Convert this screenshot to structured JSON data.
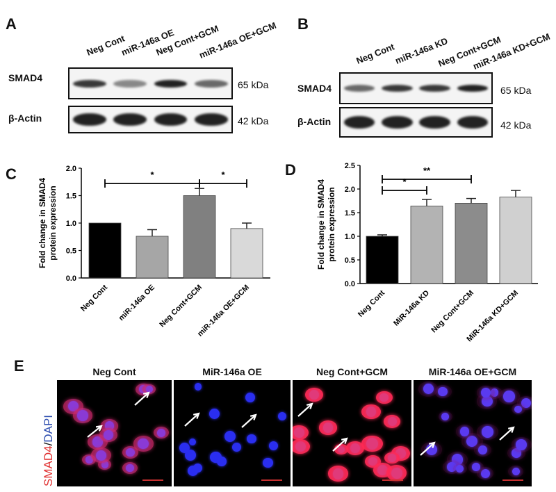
{
  "panels": {
    "a": {
      "letter": "A",
      "lanes": [
        "Neg Cont",
        "miR-146a OE",
        "Neg Cont+GCM",
        "miR-146a OE+GCM"
      ],
      "rows": [
        {
          "protein": "SMAD4",
          "kda": "65 kDa",
          "band_intensity": [
            0.85,
            0.35,
            1.0,
            0.55
          ]
        },
        {
          "protein": "β-Actin",
          "kda": "42 kDa",
          "band_intensity": [
            1.0,
            1.0,
            1.0,
            1.0
          ]
        }
      ]
    },
    "b": {
      "letter": "B",
      "lanes": [
        "Neg Cont",
        "miR-146a KD",
        "Neg Cont+GCM",
        "miR-146a KD+GCM"
      ],
      "rows": [
        {
          "protein": "SMAD4",
          "kda": "65 kDa",
          "band_intensity": [
            0.55,
            0.85,
            0.85,
            1.0
          ]
        },
        {
          "protein": "β-Actin",
          "kda": "42 kDa",
          "band_intensity": [
            1.0,
            1.0,
            1.0,
            1.0
          ]
        }
      ]
    },
    "e": {
      "letter": "E",
      "side_label_red": "SMAD4",
      "side_label_sep": "/",
      "side_label_blue": "DAPI",
      "titles": [
        "Neg Cont",
        "MiR-146a  OE",
        "Neg Cont+GCM",
        "MiR-146a OE+GCM"
      ]
    }
  },
  "chart_data": [
    {
      "type": "bar",
      "panel": "C",
      "ylabel": "Fold change in SMAD4 protein expression",
      "categories": [
        "Neg Cont",
        "miR-146a OE",
        "Neg Cont+GCM",
        "miR-146a OE+GCM"
      ],
      "values": [
        1.0,
        0.76,
        1.5,
        0.9
      ],
      "errors": [
        0,
        0.12,
        0.13,
        0.1
      ],
      "colors": [
        "#000000",
        "#a6a6a6",
        "#808080",
        "#d9d9d9"
      ],
      "ylim": [
        0,
        2.0
      ],
      "yticks": [
        "0.0",
        "0.5",
        "1.0",
        "1.5",
        "2.0"
      ],
      "significance": [
        {
          "from": 0,
          "to": 2,
          "label": "*"
        },
        {
          "from": 2,
          "to": 3,
          "label": "*"
        }
      ]
    },
    {
      "type": "bar",
      "panel": "D",
      "ylabel": "Fold change in SMAD4 protein expression",
      "categories": [
        "Neg Cont",
        "MiR-146a KD",
        "Neg Cont+GCM",
        "MiR-146a KD+GCM"
      ],
      "values": [
        1.0,
        1.64,
        1.7,
        1.83
      ],
      "errors": [
        0.03,
        0.14,
        0.1,
        0.14
      ],
      "colors": [
        "#000000",
        "#b3b3b3",
        "#8c8c8c",
        "#d0d0d0"
      ],
      "ylim": [
        0,
        2.5
      ],
      "yticks": [
        "0.0",
        "0.5",
        "1.0",
        "1.5",
        "2.0",
        "2.5"
      ],
      "significance": [
        {
          "from": 0,
          "to": 1,
          "label": "*"
        },
        {
          "from": 0,
          "to": 2,
          "label": "**"
        }
      ]
    }
  ]
}
